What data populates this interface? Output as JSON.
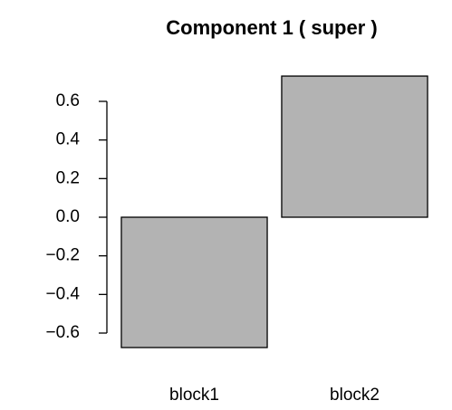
{
  "chart_data": {
    "type": "bar",
    "title": "Component 1 ( super )",
    "categories": [
      "block1",
      "block2"
    ],
    "values": [
      -0.675,
      0.731
    ],
    "color": "#b3b3b3",
    "ylim": [
      -0.75,
      0.75
    ],
    "yticks": [
      {
        "value": -0.6,
        "label": "−0.6"
      },
      {
        "value": -0.4,
        "label": "−0.4"
      },
      {
        "value": -0.2,
        "label": "−0.2"
      },
      {
        "value": 0,
        "label": "0.0"
      },
      0.2,
      0.4,
      0.6
    ]
  }
}
